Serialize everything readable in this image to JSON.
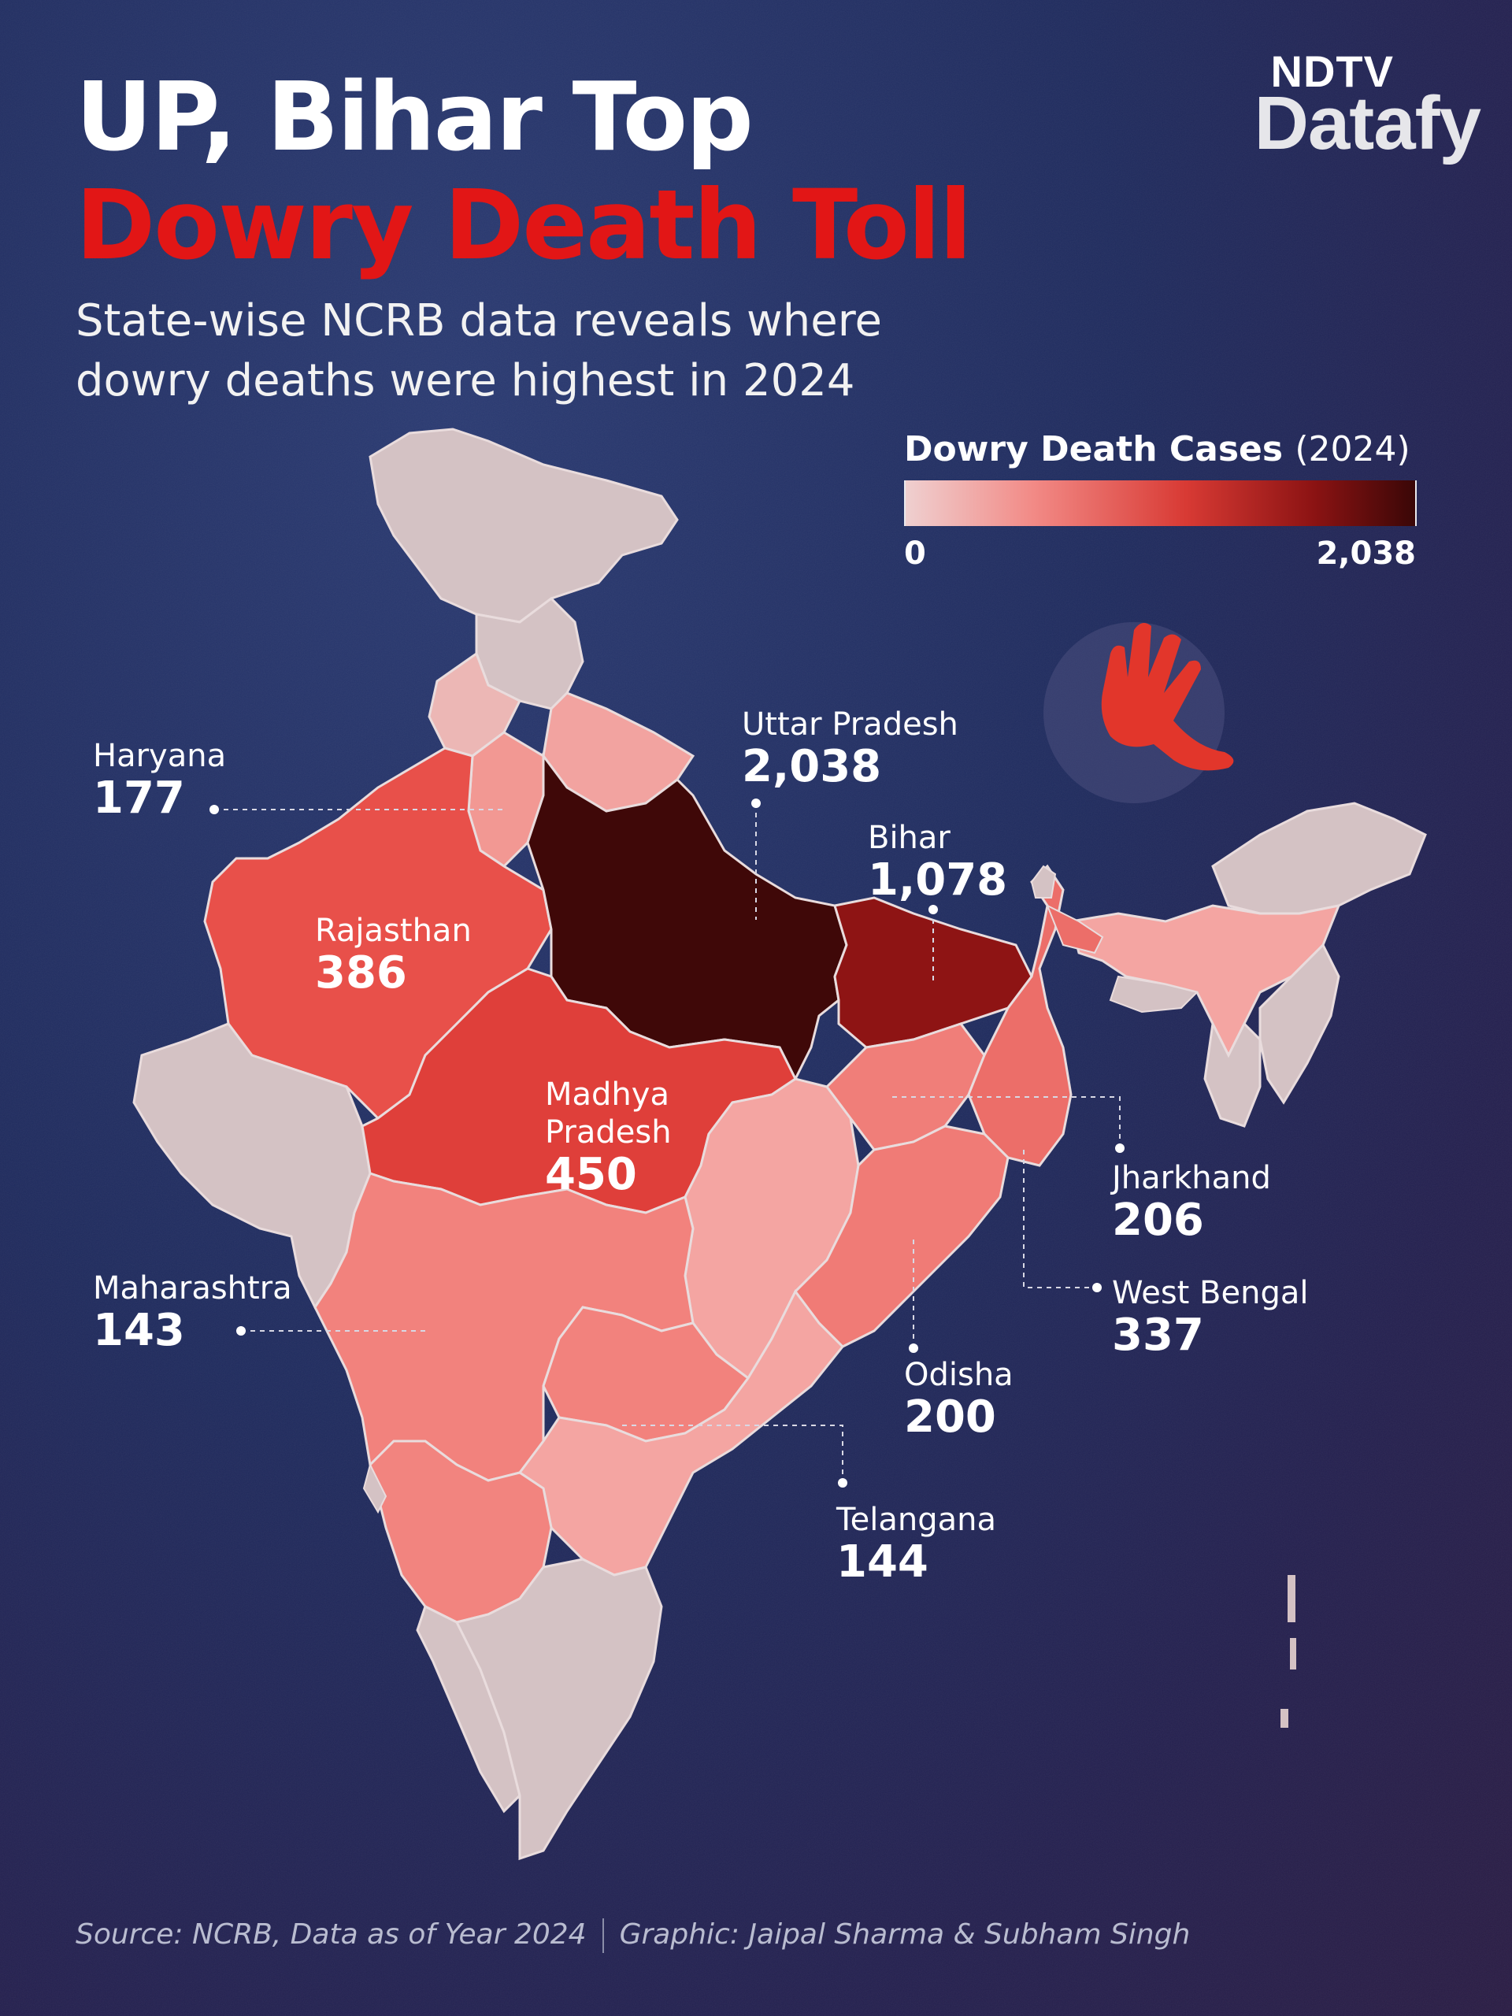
{
  "header": {
    "title_line1": "UP, Bihar Top",
    "title_line2": "Dowry Death Toll",
    "subtitle": "State-wise NCRB data reveals where dowry deaths were highest in 2024"
  },
  "brand": {
    "top": "NDTV",
    "main": "Datafy"
  },
  "legend": {
    "title": "Dowry Death Cases",
    "year": "(2024)",
    "min_label": "0",
    "max_label": "2,038",
    "min_value": 0,
    "max_value": 2038,
    "color_scale": [
      "#efd0d0",
      "#f28a86",
      "#d83a34",
      "#8c1313",
      "#3a0707"
    ]
  },
  "states": [
    {
      "name": "Uttar Pradesh",
      "value_label": "2,038",
      "value": 2038
    },
    {
      "name": "Bihar",
      "value_label": "1,078",
      "value": 1078
    },
    {
      "name": "Haryana",
      "value_label": "177",
      "value": 177
    },
    {
      "name": "Rajasthan",
      "value_label": "386",
      "value": 386
    },
    {
      "name": "Madhya Pradesh",
      "value_label": "450",
      "value": 450
    },
    {
      "name": "Maharashtra",
      "value_label": "143",
      "value": 143
    },
    {
      "name": "Jharkhand",
      "value_label": "206",
      "value": 206
    },
    {
      "name": "West Bengal",
      "value_label": "337",
      "value": 337
    },
    {
      "name": "Odisha",
      "value_label": "200",
      "value": 200
    },
    {
      "name": "Telangana",
      "value_label": "144",
      "value": 144
    }
  ],
  "labels": {
    "madhya_line1": "Madhya",
    "madhya_line2": "Pradesh"
  },
  "map_colors": {
    "no_data": "#d4c2c4",
    "very_high": "#3f0808",
    "high": "#8e1414",
    "mid": "#df3f3a",
    "mid_low": "#e8504a",
    "low": "#f08a85",
    "lower": "#f4a5a2"
  },
  "footer": {
    "source": "Source: NCRB, Data as of Year 2024",
    "credit": "Graphic: Jaipal Sharma & Subham Singh"
  }
}
